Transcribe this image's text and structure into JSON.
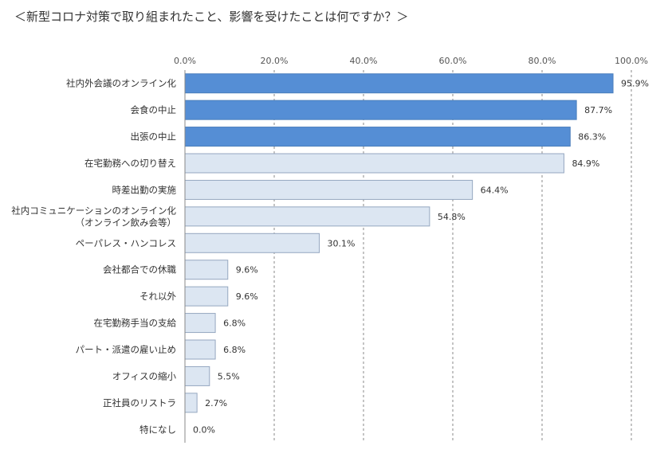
{
  "chart_data": {
    "type": "bar",
    "orientation": "horizontal",
    "title": "＜新型コロナ対策で取り組まれたこと、影響を受けたことは何ですか？＞",
    "categories": [
      [
        "社内外会議のオンライン化"
      ],
      [
        "会食の中止"
      ],
      [
        "出張の中止"
      ],
      [
        "在宅勤務への切り替え"
      ],
      [
        "時差出勤の実施"
      ],
      [
        "社内コミュニケーションのオンライン化",
        "（オンライン飲み会等）"
      ],
      [
        "ペーパレス・ハンコレス"
      ],
      [
        "会社都合での休職"
      ],
      [
        "それ以外"
      ],
      [
        "在宅勤務手当の支給"
      ],
      [
        "パート・派遣の雇い止め"
      ],
      [
        "オフィスの縮小"
      ],
      [
        "正社員のリストラ"
      ],
      [
        "特になし"
      ]
    ],
    "values": [
      95.9,
      87.7,
      86.3,
      84.9,
      64.4,
      54.8,
      30.1,
      9.6,
      9.6,
      6.8,
      6.8,
      5.5,
      2.7,
      0.0
    ],
    "value_labels": [
      "95.9%",
      "87.7%",
      "86.3%",
      "84.9%",
      "64.4%",
      "54.8%",
      "30.1%",
      "9.6%",
      "9.6%",
      "6.8%",
      "6.8%",
      "5.5%",
      "2.7%",
      "0.0%"
    ],
    "highlighted": [
      true,
      true,
      true,
      false,
      false,
      false,
      false,
      false,
      false,
      false,
      false,
      false,
      false,
      false
    ],
    "xlim": [
      0,
      100
    ],
    "ticks": [
      "0.0%",
      "20.0%",
      "40.0%",
      "60.0%",
      "80.0%",
      "100.0%"
    ],
    "tick_values": [
      0,
      20,
      40,
      60,
      80,
      100
    ],
    "axis_position": "top",
    "grid": true,
    "colors": {
      "highlight": "#558ED5",
      "normal": "#DCE6F2",
      "highlight_edge": "#4A7EBB",
      "normal_edge": "#95A7C0",
      "grid": "#888888"
    }
  }
}
